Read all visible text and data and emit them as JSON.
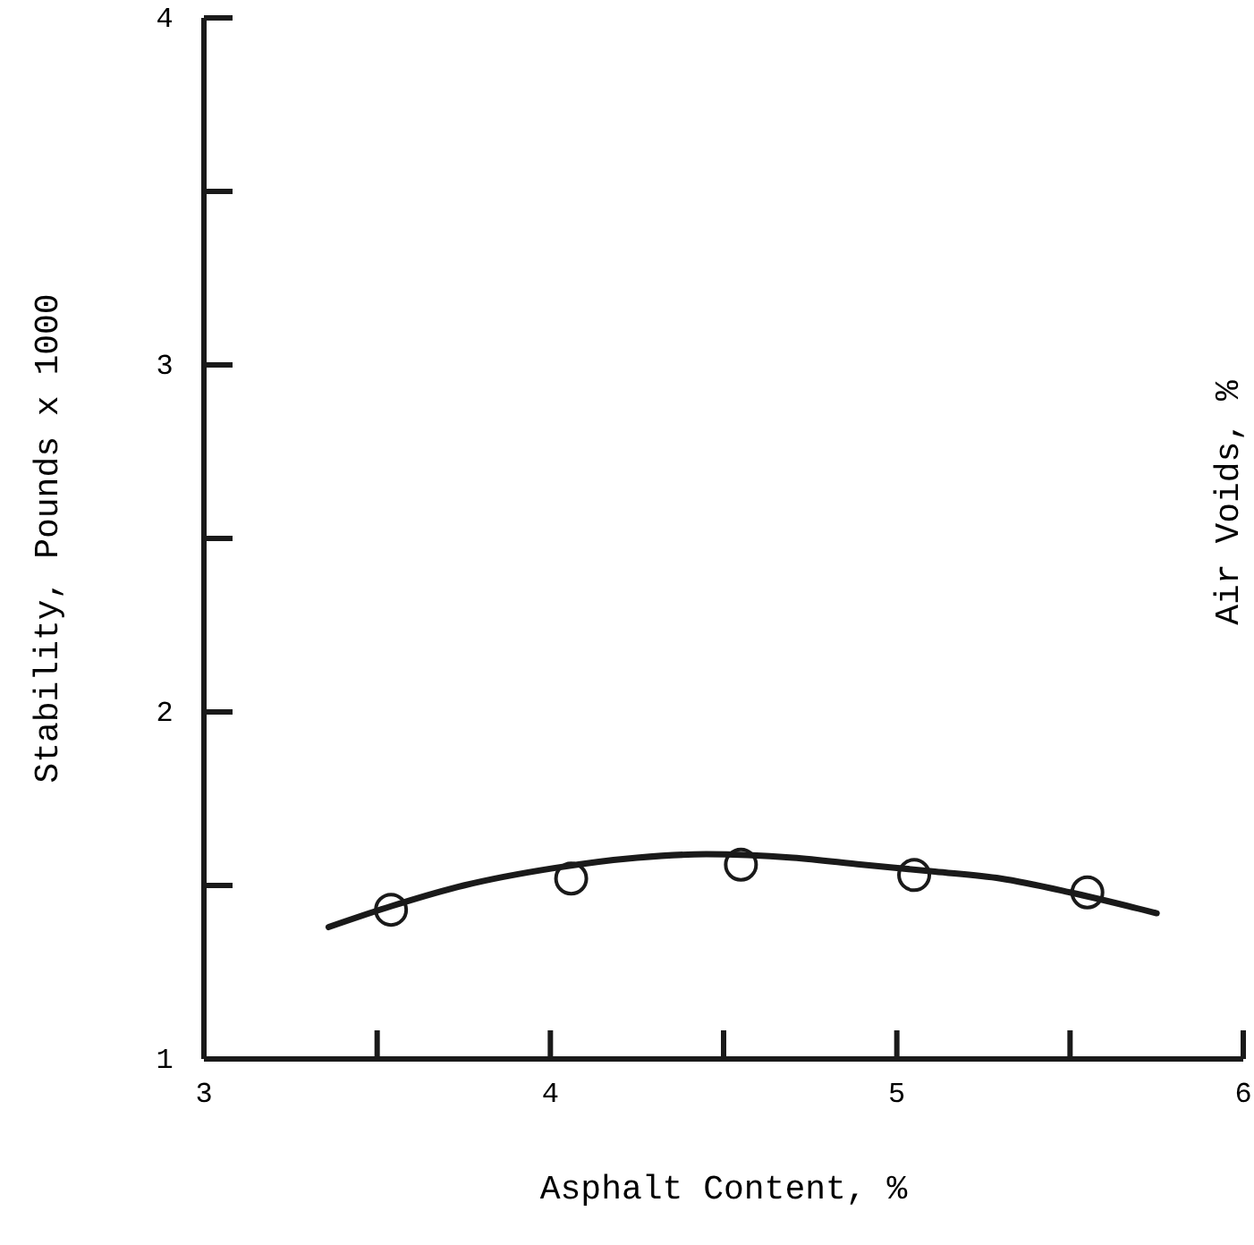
{
  "chart_data": {
    "type": "scatter",
    "xlabel": "Asphalt Content, %",
    "ylabel": "Stability, Pounds x 1000",
    "y2label": "Air Voids, %",
    "xlim": [
      3,
      6
    ],
    "ylim": [
      1,
      4
    ],
    "xticks": [
      3,
      {
        "value": 3.5,
        "label": null
      },
      4,
      {
        "value": 4.5,
        "label": null
      },
      5,
      {
        "value": 5.5,
        "label": null
      },
      6
    ],
    "yticks": [
      1,
      {
        "value": 1.5,
        "label": null
      },
      2,
      {
        "value": 2.5,
        "label": null
      },
      3,
      {
        "value": 3.5,
        "label": null
      },
      4
    ],
    "grid": false,
    "series": [
      {
        "color": "#1a1a1a",
        "marker": "circle",
        "x": [
          3.54,
          4.06,
          4.55,
          5.05,
          5.55
        ],
        "values": [
          1.43,
          1.52,
          1.56,
          1.53,
          1.48
        ]
      },
      {
        "type": "line",
        "color": "#1a1a1a",
        "line_style": "solid",
        "x": [
          3.36,
          3.54,
          3.75,
          4.01,
          4.25,
          4.45,
          4.7,
          4.9,
          5.11,
          5.3,
          5.5,
          5.75
        ],
        "values": [
          1.38,
          1.44,
          1.5,
          1.55,
          1.58,
          1.59,
          1.58,
          1.56,
          1.54,
          1.52,
          1.48,
          1.42
        ]
      }
    ]
  }
}
